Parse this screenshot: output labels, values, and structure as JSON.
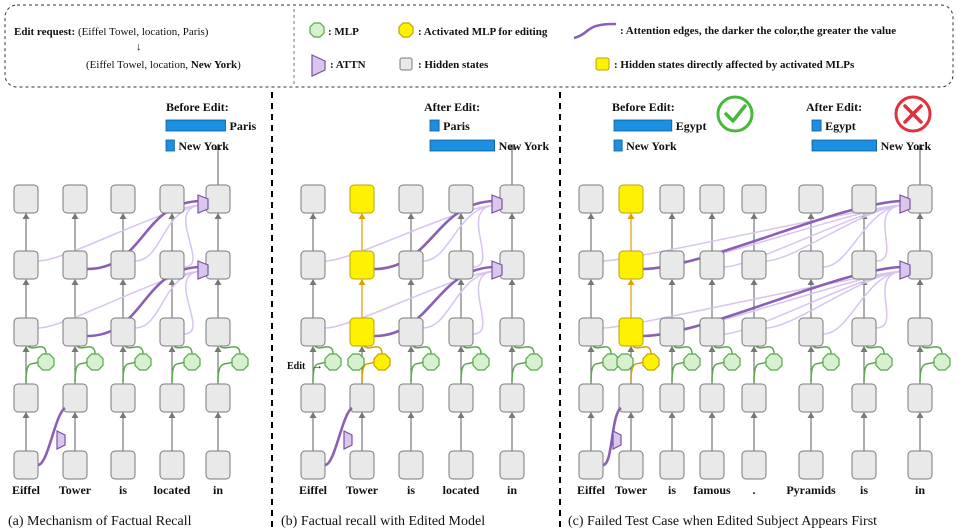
{
  "legend": {
    "edit_request_label": "Edit request:",
    "edit_request_old": " (Eiffel Towel, location, Paris)",
    "arrow": "↓",
    "edit_request_new_prefix": "(Eiffel Towel, location, ",
    "edit_request_new_target": "New York",
    "edit_request_new_suffix": ")",
    "mlp": ": MLP",
    "activated_mlp": ": Activated MLP for editing",
    "attn_edges": ": Attention edges, the darker the color,the greater the value",
    "attn": ": ATTN",
    "hidden_states": ": Hidden states",
    "affected_states": ": Hidden states directly affected by activated MLPs"
  },
  "panels": {
    "a": {
      "caption": "(a) Mechanism of Factual Recall",
      "tokens": [
        "Eiffel",
        "Tower",
        "is",
        "located",
        "in"
      ],
      "output_title": "Before Edit:",
      "bars": [
        {
          "label": "Paris",
          "value": 0.85
        },
        {
          "label": "New York",
          "value": 0.12
        }
      ]
    },
    "b": {
      "caption": "(b) Factual recall with Edited Model",
      "tokens": [
        "Eiffel",
        "Tower",
        "is",
        "located",
        "in"
      ],
      "edit_marker": "Edit",
      "output_title": "After Edit:",
      "bars": [
        {
          "label": "Paris",
          "value": 0.12
        },
        {
          "label": "New York",
          "value": 0.85
        }
      ]
    },
    "c": {
      "caption": "(c) Failed Test Case when Edited Subject Appears First",
      "tokens": [
        "Eiffel",
        "Tower",
        "is",
        "famous",
        ".",
        "Pyramids",
        "is",
        "in"
      ],
      "before_title": "Before Edit:",
      "before_bars": [
        {
          "label": "Egypt",
          "value": 0.85
        },
        {
          "label": "New York",
          "value": 0.12
        }
      ],
      "after_title": "After Edit:",
      "after_bars": [
        {
          "label": "Egypt",
          "value": 0.12
        },
        {
          "label": "New York",
          "value": 0.85
        }
      ],
      "before_icon": "check-circle-icon",
      "after_icon": "cross-circle-icon"
    }
  },
  "colors": {
    "hidden": "#e9e9e9",
    "highlight": "#fff200",
    "mlp": "#d7f0cf",
    "attn_dark": "#8a5fb5",
    "attn_light": "#d8c4ee",
    "bar": "#1d8fe0",
    "check": "#46b83a",
    "cross": "#e0303a"
  }
}
